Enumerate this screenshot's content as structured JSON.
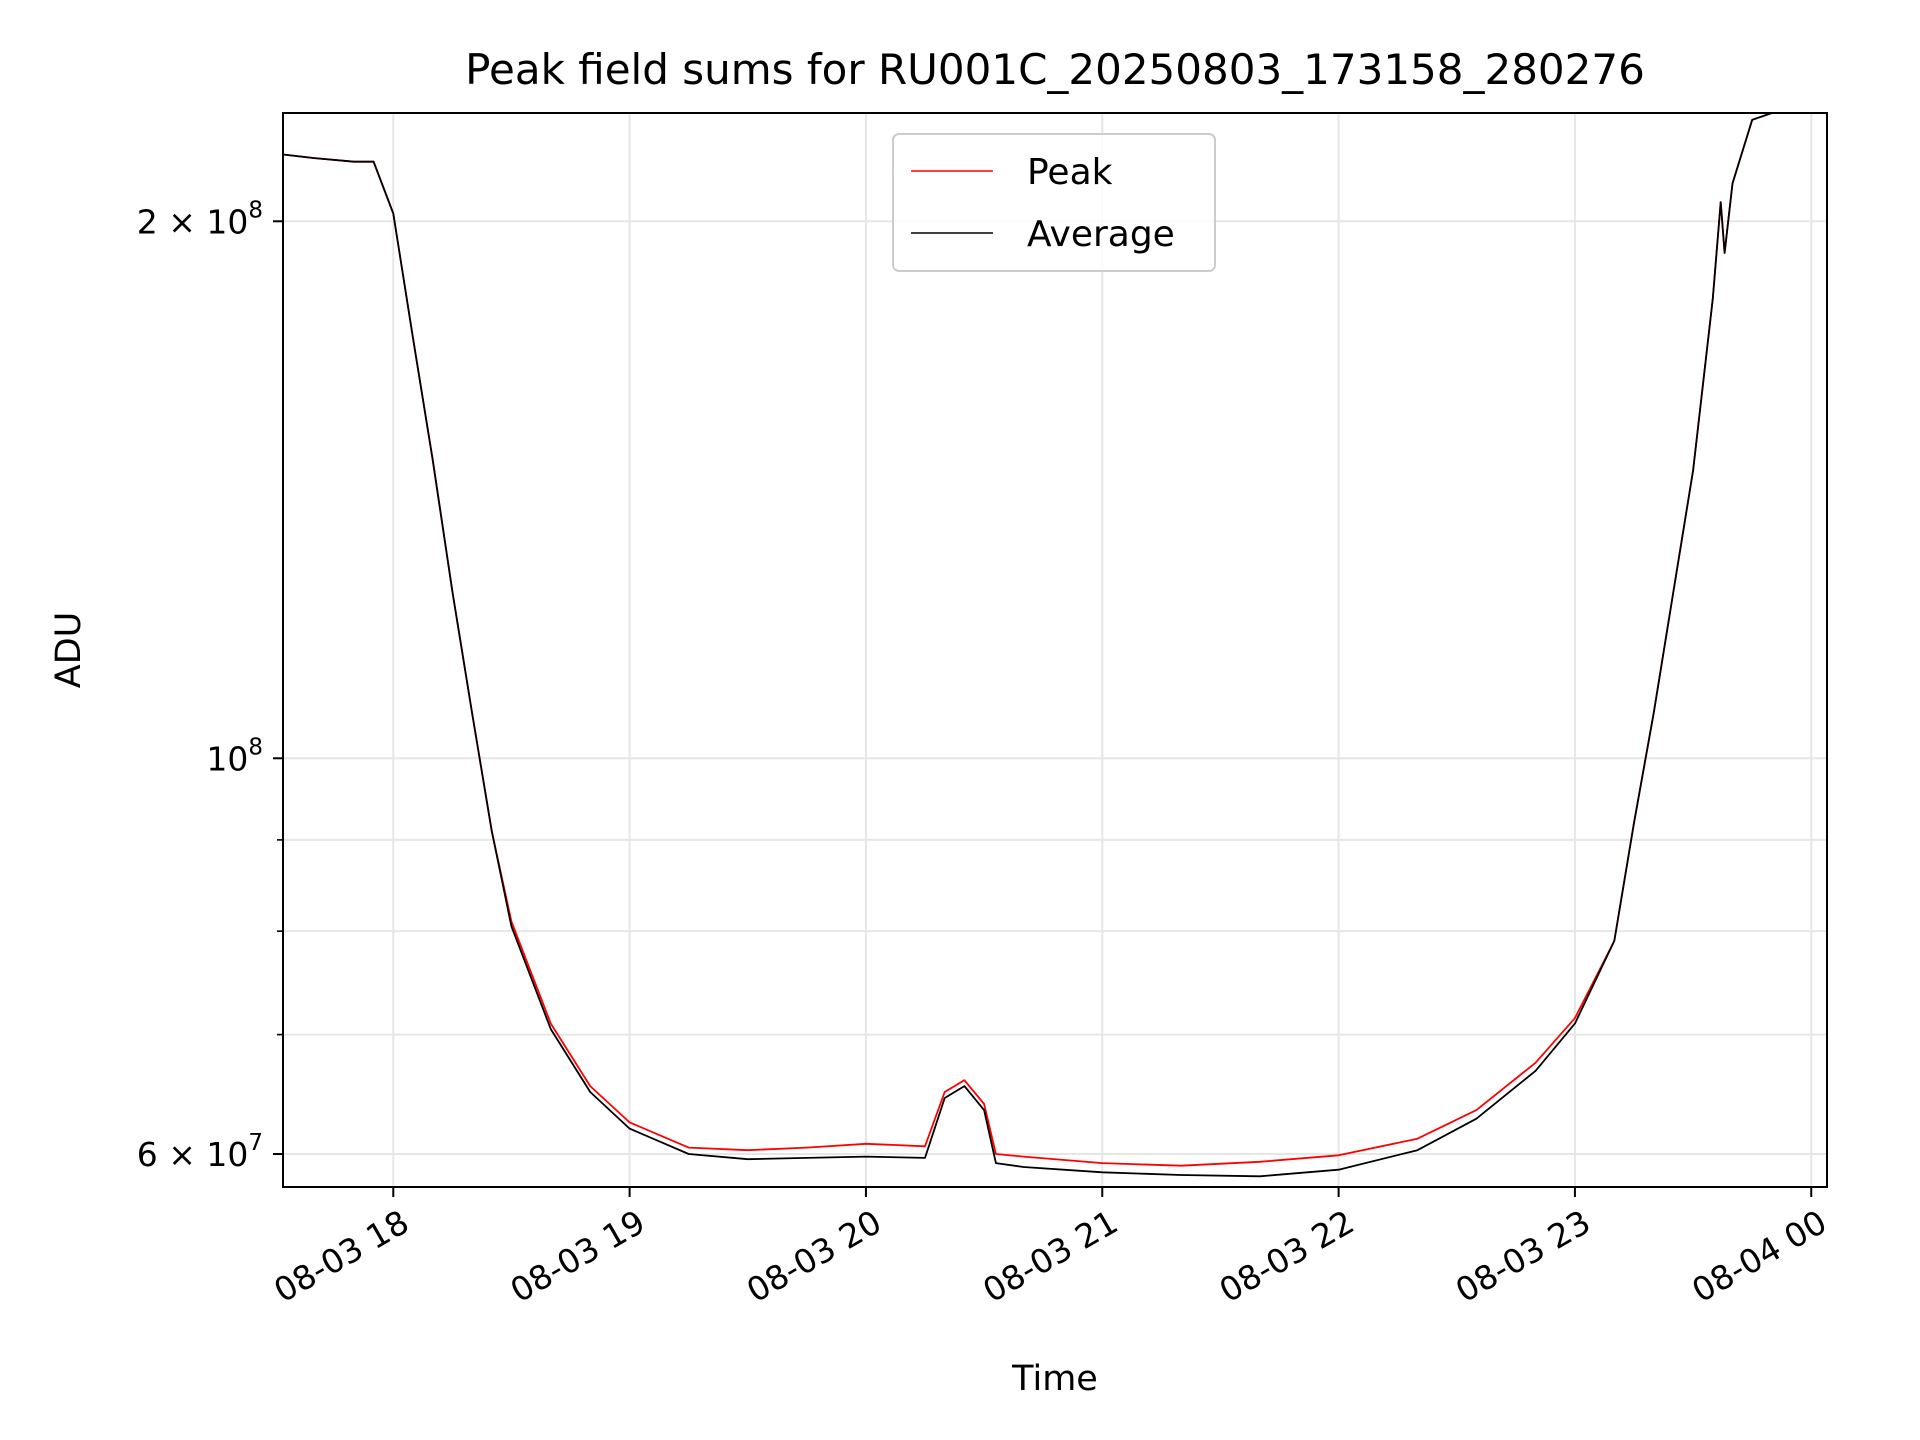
{
  "chart_data": {
    "type": "line",
    "title": "Peak field sums for RU001C_20250803_173158_280276",
    "xlabel": "Time",
    "ylabel": "ADU",
    "yscale": "log",
    "ylim": [
      57500000,
      230000000
    ],
    "xlim": [
      "2025-08-03 17:32",
      "2025-08-04 00:04"
    ],
    "grid": true,
    "legend_position": "top-center",
    "x_tick_labels": [
      "08-03 18",
      "08-03 19",
      "08-03 20",
      "08-03 21",
      "08-03 22",
      "08-03 23",
      "08-04 00"
    ],
    "y_tick_labels": [
      {
        "base": "2 × 10",
        "exp": "8"
      },
      {
        "base": "10",
        "exp": "8"
      },
      {
        "base": "6 × 10",
        "exp": "7"
      }
    ],
    "series": [
      {
        "name": "Peak",
        "color": "#ff0000",
        "x": [
          "2025-08-03 17:32",
          "2025-08-03 17:40",
          "2025-08-03 17:50",
          "2025-08-03 17:55",
          "2025-08-03 18:00",
          "2025-08-03 18:05",
          "2025-08-03 18:10",
          "2025-08-03 18:15",
          "2025-08-03 18:20",
          "2025-08-03 18:25",
          "2025-08-03 18:30",
          "2025-08-03 18:40",
          "2025-08-03 18:50",
          "2025-08-03 19:00",
          "2025-08-03 19:15",
          "2025-08-03 19:30",
          "2025-08-03 19:45",
          "2025-08-03 20:00",
          "2025-08-03 20:15",
          "2025-08-03 20:20",
          "2025-08-03 20:25",
          "2025-08-03 20:30",
          "2025-08-03 20:33",
          "2025-08-03 20:40",
          "2025-08-03 21:00",
          "2025-08-03 21:20",
          "2025-08-03 21:40",
          "2025-08-03 22:00",
          "2025-08-03 22:20",
          "2025-08-03 22:35",
          "2025-08-03 22:50",
          "2025-08-03 23:00",
          "2025-08-03 23:10",
          "2025-08-03 23:15",
          "2025-08-03 23:20",
          "2025-08-03 23:25",
          "2025-08-03 23:30",
          "2025-08-03 23:35",
          "2025-08-03 23:37",
          "2025-08-03 23:38",
          "2025-08-03 23:40",
          "2025-08-03 23:45",
          "2025-08-03 23:50"
        ],
        "y": [
          218000000,
          217000000,
          216000000,
          216000000,
          202000000,
          172000000,
          147000000,
          124000000,
          106000000,
          91000000,
          81000000,
          71000000,
          65500000,
          62500000,
          60500000,
          60300000,
          60500000,
          60800000,
          60600000,
          65000000,
          66000000,
          64000000,
          60000000,
          59800000,
          59300000,
          59100000,
          59400000,
          59900000,
          61200000,
          63500000,
          67500000,
          71500000,
          79000000,
          92000000,
          106000000,
          124000000,
          145000000,
          181000000,
          205000000,
          192000000,
          210000000,
          228000000,
          230000000
        ]
      },
      {
        "name": "Average",
        "color": "#000000",
        "x": [
          "2025-08-03 17:32",
          "2025-08-03 17:40",
          "2025-08-03 17:50",
          "2025-08-03 17:55",
          "2025-08-03 18:00",
          "2025-08-03 18:05",
          "2025-08-03 18:10",
          "2025-08-03 18:15",
          "2025-08-03 18:20",
          "2025-08-03 18:25",
          "2025-08-03 18:30",
          "2025-08-03 18:40",
          "2025-08-03 18:50",
          "2025-08-03 19:00",
          "2025-08-03 19:15",
          "2025-08-03 19:30",
          "2025-08-03 19:45",
          "2025-08-03 20:00",
          "2025-08-03 20:15",
          "2025-08-03 20:20",
          "2025-08-03 20:25",
          "2025-08-03 20:30",
          "2025-08-03 20:33",
          "2025-08-03 20:40",
          "2025-08-03 21:00",
          "2025-08-03 21:20",
          "2025-08-03 21:40",
          "2025-08-03 22:00",
          "2025-08-03 22:20",
          "2025-08-03 22:35",
          "2025-08-03 22:50",
          "2025-08-03 23:00",
          "2025-08-03 23:10",
          "2025-08-03 23:15",
          "2025-08-03 23:20",
          "2025-08-03 23:25",
          "2025-08-03 23:30",
          "2025-08-03 23:35",
          "2025-08-03 23:37",
          "2025-08-03 23:38",
          "2025-08-03 23:40",
          "2025-08-03 23:45",
          "2025-08-03 23:50"
        ],
        "y": [
          218000000,
          217000000,
          216000000,
          216000000,
          202000000,
          172000000,
          147000000,
          124000000,
          106000000,
          91000000,
          80500000,
          70500000,
          65000000,
          62000000,
          60000000,
          59600000,
          59700000,
          59800000,
          59700000,
          64500000,
          65500000,
          63500000,
          59300000,
          59000000,
          58600000,
          58400000,
          58300000,
          58800000,
          60300000,
          62800000,
          66800000,
          71000000,
          79000000,
          92000000,
          106000000,
          124000000,
          145000000,
          181000000,
          205000000,
          192000000,
          210000000,
          228000000,
          230000000
        ]
      }
    ]
  }
}
